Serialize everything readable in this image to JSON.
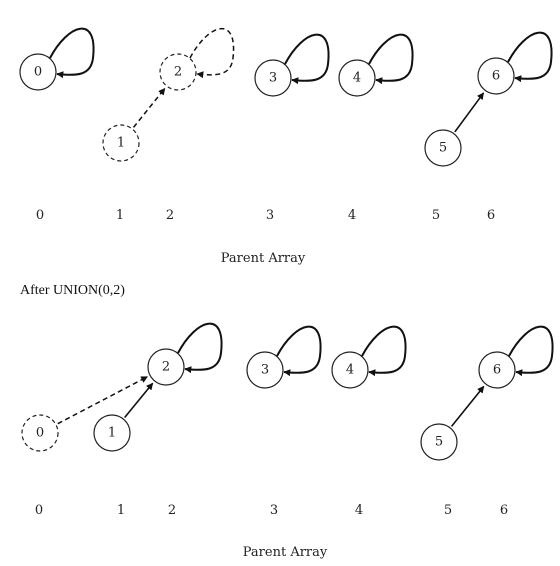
{
  "sections": [
    {
      "heading": "",
      "caption": "Parent Array",
      "index_labels": [
        "0",
        "1",
        "2",
        "3",
        "4",
        "5",
        "6"
      ],
      "nodes": [
        {
          "id": "0",
          "label": "0",
          "style": "solid"
        },
        {
          "id": "1",
          "label": "1",
          "style": "dashed"
        },
        {
          "id": "2",
          "label": "2",
          "style": "dashed"
        },
        {
          "id": "3",
          "label": "3",
          "style": "solid"
        },
        {
          "id": "4",
          "label": "4",
          "style": "solid"
        },
        {
          "id": "5",
          "label": "5",
          "style": "solid"
        },
        {
          "id": "6",
          "label": "6",
          "style": "solid"
        }
      ],
      "edges": [
        {
          "from": "0",
          "to": "0",
          "style": "solid"
        },
        {
          "from": "2",
          "to": "2",
          "style": "dashed"
        },
        {
          "from": "1",
          "to": "2",
          "style": "dashed"
        },
        {
          "from": "3",
          "to": "3",
          "style": "solid"
        },
        {
          "from": "4",
          "to": "4",
          "style": "solid"
        },
        {
          "from": "6",
          "to": "6",
          "style": "solid"
        },
        {
          "from": "5",
          "to": "6",
          "style": "solid"
        }
      ]
    },
    {
      "heading": "After UNION(0,2)",
      "caption": "Parent Array",
      "index_labels": [
        "0",
        "1",
        "2",
        "3",
        "4",
        "5",
        "6"
      ],
      "nodes": [
        {
          "id": "0",
          "label": "0",
          "style": "dashed"
        },
        {
          "id": "1",
          "label": "1",
          "style": "solid"
        },
        {
          "id": "2",
          "label": "2",
          "style": "solid"
        },
        {
          "id": "3",
          "label": "3",
          "style": "solid"
        },
        {
          "id": "4",
          "label": "4",
          "style": "solid"
        },
        {
          "id": "5",
          "label": "5",
          "style": "solid"
        },
        {
          "id": "6",
          "label": "6",
          "style": "solid"
        }
      ],
      "edges": [
        {
          "from": "2",
          "to": "2",
          "style": "solid"
        },
        {
          "from": "0",
          "to": "2",
          "style": "dashed"
        },
        {
          "from": "1",
          "to": "2",
          "style": "solid"
        },
        {
          "from": "3",
          "to": "3",
          "style": "solid"
        },
        {
          "from": "4",
          "to": "4",
          "style": "solid"
        },
        {
          "from": "6",
          "to": "6",
          "style": "solid"
        },
        {
          "from": "5",
          "to": "6",
          "style": "solid"
        }
      ]
    }
  ]
}
